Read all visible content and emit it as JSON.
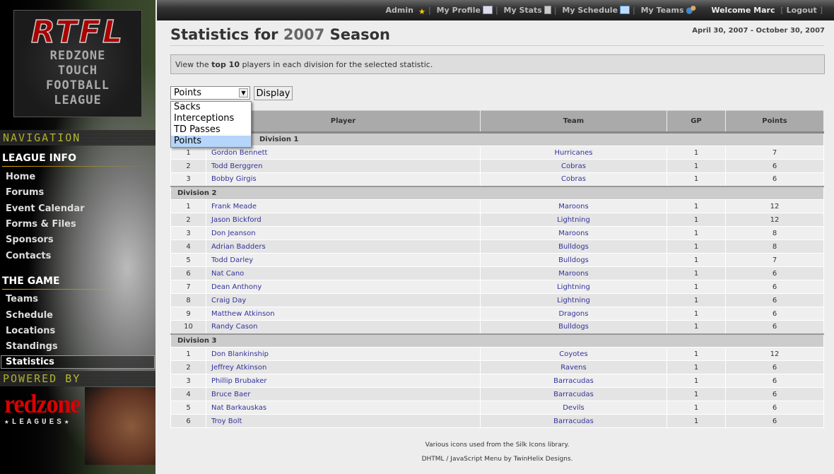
{
  "sidebar": {
    "logo": {
      "abbr": "RTFL",
      "lines": [
        "REDZONE",
        "TOUCH",
        "FOOTBALL",
        "LEAGUE"
      ]
    },
    "nav_lcd": "NAVIGATION",
    "league_info": {
      "heading": "LEAGUE INFO",
      "items": [
        "Home",
        "Forums",
        "Event Calendar",
        "Forms & Files",
        "Sponsors",
        "Contacts"
      ]
    },
    "the_game": {
      "heading": "THE GAME",
      "items": [
        "Teams",
        "Schedule",
        "Locations",
        "Standings",
        "Statistics"
      ],
      "active": "Statistics"
    },
    "powered_lcd": "POWERED BY",
    "powered_logo": {
      "name": "redzone",
      "tag": "★LEAGUES★"
    }
  },
  "topbar": {
    "admin": "Admin",
    "profile": "My Profile",
    "stats": "My Stats",
    "schedule": "My Schedule",
    "teams": "My Teams",
    "welcome": "Welcome Marc",
    "logout": "Logout"
  },
  "page": {
    "title_prefix": "Statistics for",
    "year": "2007",
    "title_suffix": "Season",
    "date_range": "April 30, 2007 - October 30, 2007",
    "info_pre": "View the ",
    "info_bold": "top 10",
    "info_post": " players in each division for the selected statistic."
  },
  "controls": {
    "selected": "Points",
    "options": [
      "Sacks",
      "Interceptions",
      "TD Passes",
      "Points"
    ],
    "display": "Display"
  },
  "table": {
    "headers": [
      "",
      "Player",
      "Team",
      "GP",
      "Points"
    ],
    "divisions": [
      {
        "name": "Division 1",
        "rows": [
          [
            1,
            "Gordon Bennett",
            "Hurricanes",
            1,
            7
          ],
          [
            2,
            "Todd Berggren",
            "Cobras",
            1,
            6
          ],
          [
            3,
            "Bobby Girgis",
            "Cobras",
            1,
            6
          ]
        ]
      },
      {
        "name": "Division 2",
        "rows": [
          [
            1,
            "Frank Meade",
            "Maroons",
            1,
            12
          ],
          [
            2,
            "Jason Bickford",
            "Lightning",
            1,
            12
          ],
          [
            3,
            "Don Jeanson",
            "Maroons",
            1,
            8
          ],
          [
            4,
            "Adrian Badders",
            "Bulldogs",
            1,
            8
          ],
          [
            5,
            "Todd Darley",
            "Bulldogs",
            1,
            7
          ],
          [
            6,
            "Nat Cano",
            "Maroons",
            1,
            6
          ],
          [
            7,
            "Dean Anthony",
            "Lightning",
            1,
            6
          ],
          [
            8,
            "Craig Day",
            "Lightning",
            1,
            6
          ],
          [
            9,
            "Matthew Atkinson",
            "Dragons",
            1,
            6
          ],
          [
            10,
            "Randy Cason",
            "Bulldogs",
            1,
            6
          ]
        ]
      },
      {
        "name": "Division 3",
        "rows": [
          [
            1,
            "Don Blankinship",
            "Coyotes",
            1,
            12
          ],
          [
            2,
            "Jeffrey Atkinson",
            "Ravens",
            1,
            6
          ],
          [
            3,
            "Phillip Brubaker",
            "Barracudas",
            1,
            6
          ],
          [
            4,
            "Bruce Baer",
            "Barracudas",
            1,
            6
          ],
          [
            5,
            "Nat Barkauskas",
            "Devils",
            1,
            6
          ],
          [
            6,
            "Troy Bolt",
            "Barracudas",
            1,
            6
          ]
        ]
      }
    ]
  },
  "footer": {
    "line1": "Various icons used from the Silk Icons library.",
    "line2": "DHTML / JavaScript Menu by TwinHelix Designs."
  }
}
